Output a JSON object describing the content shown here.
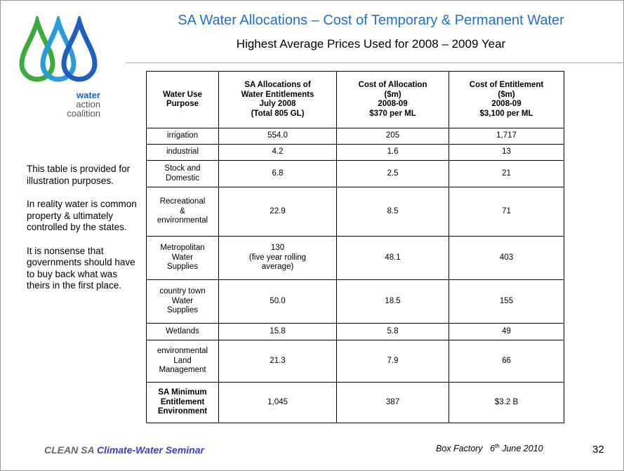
{
  "header": {
    "title": "SA Water Allocations – Cost of Temporary & Permanent Water",
    "subtitle": "Highest Average Prices Used for 2008 – 2009 Year"
  },
  "logo": {
    "lines": [
      "water",
      "action",
      "coalition"
    ]
  },
  "sidebar": {
    "paragraphs": [
      "This table is provided for illustration purposes.",
      "In reality water is common property & ultimately controlled by the states.",
      "It is nonsense that governments should have to buy back what was theirs in the first place."
    ]
  },
  "table": {
    "headers": [
      "Water Use\nPurpose",
      "SA Allocations of\nWater Entitlements\nJuly 2008\n(Total  805 GL)",
      "Cost of Allocation\n($m)\n2008-09\n$370 per ML",
      "Cost of Entitlement\n($m)\n2008-09\n$3,100 per ML"
    ],
    "rows": [
      [
        "irrigation",
        "554.0",
        "205",
        "1,717"
      ],
      [
        "industrial",
        "4.2",
        "1.6",
        "13"
      ],
      [
        "Stock and\nDomestic",
        "6.8",
        "2.5",
        "21"
      ],
      [
        "Recreational\n&\nenvironmental",
        "22.9",
        "8.5",
        "71"
      ],
      [
        "Metropolitan\nWater\nSupplies",
        "130\n(five year rolling\naverage)",
        "48.1",
        "403"
      ],
      [
        "country town\nWater\nSupplies",
        "50.0",
        "18.5",
        "155"
      ],
      [
        "Wetlands",
        "15.8",
        "5.8",
        "49"
      ],
      [
        "environmental\nLand\nManagement",
        "21.3",
        "7.9",
        "66"
      ],
      [
        "SA Minimum\nEntitlement\nEnvironment",
        "1,045",
        "387",
        "$3.2 B"
      ]
    ]
  },
  "footer": {
    "org": "CLEAN SA",
    "event": "Climate-Water Seminar",
    "venue": "Box Factory",
    "day": "6",
    "day_suffix": "th",
    "date_rest": "June 2010",
    "page": "32"
  }
}
